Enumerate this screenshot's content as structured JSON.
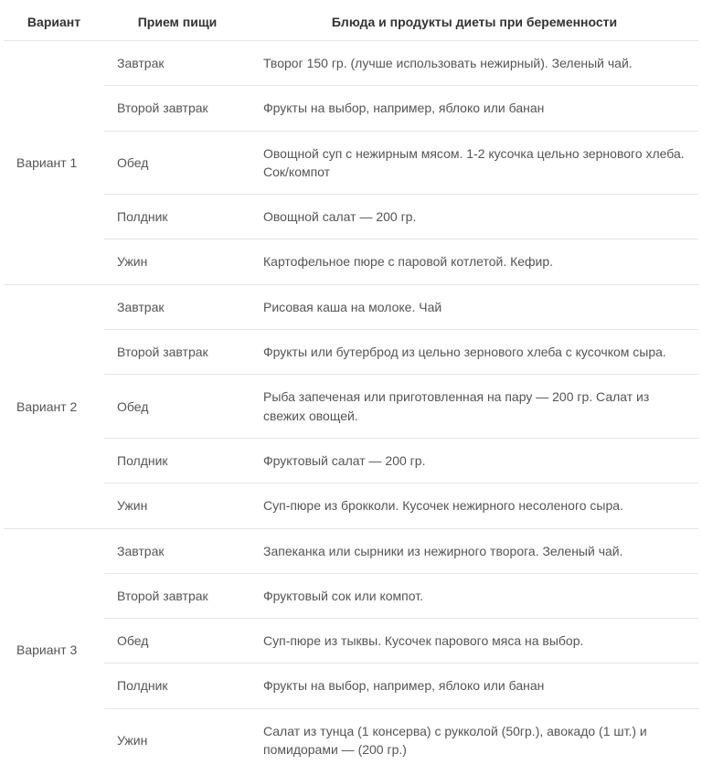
{
  "table": {
    "headers": {
      "variant": "Вариант",
      "meal": "Прием пищи",
      "food": "Блюда и продукты диеты при беременности"
    },
    "variants": [
      {
        "name": "Вариант 1",
        "rows": [
          {
            "meal": "Завтрак",
            "food": "Творог 150 гр. (лучше использовать нежирный). Зеленый чай."
          },
          {
            "meal": "Второй завтрак",
            "food": "Фрукты на выбор, например, яблоко или банан"
          },
          {
            "meal": "Обед",
            "food": "Овощной суп с нежирным мясом. 1-2 кусочка цельно зернового хлеба. Сок/компот"
          },
          {
            "meal": "Полдник",
            "food": "Овощной салат — 200 гр."
          },
          {
            "meal": "Ужин",
            "food": "Картофельное пюре с паровой котлетой. Кефир."
          }
        ]
      },
      {
        "name": "Вариант 2",
        "rows": [
          {
            "meal": "Завтрак",
            "food": "Рисовая каша на молоке. Чай"
          },
          {
            "meal": "Второй завтрак",
            "food": "Фрукты или бутерброд из цельно зернового хлеба с кусочком сыра."
          },
          {
            "meal": "Обед",
            "food": "Рыба запеченая или приготовленная на пару — 200 гр. Салат из свежих овощей."
          },
          {
            "meal": "Полдник",
            "food": "Фруктовый салат — 200 гр."
          },
          {
            "meal": "Ужин",
            "food": "Суп-пюре из брокколи. Кусочек нежирного несоленого сыра."
          }
        ]
      },
      {
        "name": "Вариант 3",
        "rows": [
          {
            "meal": "Завтрак",
            "food": "Запеканка или сырники из нежирного творога. Зеленый чай."
          },
          {
            "meal": "Второй завтрак",
            "food": "Фруктовый сок или компот."
          },
          {
            "meal": "Обед",
            "food": "Суп-пюре из тыквы. Кусочек парового мяса на выбор."
          },
          {
            "meal": "Полдник",
            "food": "Фрукты на выбор, например, яблоко или банан"
          },
          {
            "meal": "Ужин",
            "food": "Салат из тунца (1 консерва) с рукколой (50гр.), авокадо (1 шт.) и помидорами — (200 гр.)"
          }
        ]
      }
    ],
    "colors": {
      "border": "#e5e5e5",
      "header_text": "#333333",
      "cell_text": "#555555",
      "background": "#ffffff"
    },
    "typography": {
      "font_size": 14,
      "header_weight": 700,
      "line_height": 1.45
    }
  }
}
